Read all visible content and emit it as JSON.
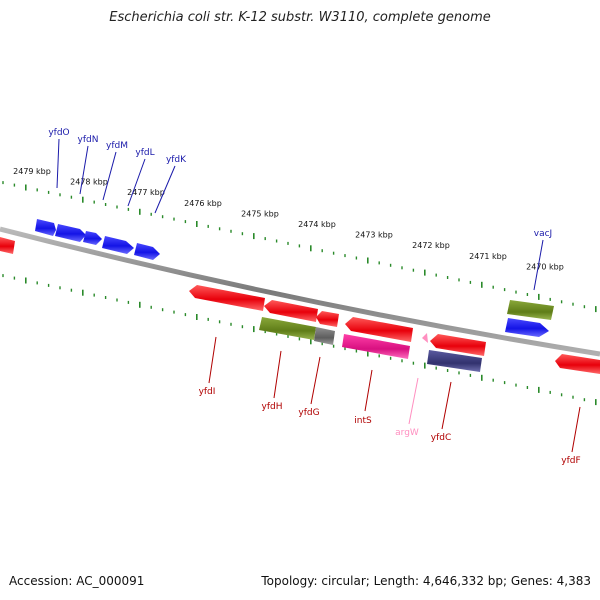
{
  "title": "Escherichia coli str. K-12 substr. W3110, complete genome",
  "accession": "Accession: AC_000091",
  "summary": "Topology: circular; Length: 4,646,332 bp; Genes: 4,383",
  "colors": {
    "backbone": "#888888",
    "tick": "#2a8a2a",
    "gene_red": "#e8000b",
    "gene_blue": "#1a1aee",
    "gene_olive": "#6b8a1e",
    "gene_magenta": "#e0168c",
    "gene_navy": "#3a3a78",
    "gene_grey": "#6e6e6e",
    "trna_pink": "#ff8fc0",
    "label_red": "#b00000",
    "label_blue": "#1a1aaa"
  },
  "scale_ticks": [
    "2479 kbp",
    "2478 kbp",
    "2477 kbp",
    "2476 kbp",
    "2475 kbp",
    "2474 kbp",
    "2473 kbp",
    "2472 kbp",
    "2471 kbp",
    "2470 kbp"
  ],
  "top_labels": [
    {
      "name": "yfdO",
      "color": "blue"
    },
    {
      "name": "yfdN",
      "color": "blue"
    },
    {
      "name": "yfdM",
      "color": "blue"
    },
    {
      "name": "yfdL",
      "color": "blue"
    },
    {
      "name": "yfdK",
      "color": "blue"
    },
    {
      "name": "vacJ",
      "color": "blue"
    }
  ],
  "bottom_labels": [
    {
      "name": "yfdI",
      "color": "red"
    },
    {
      "name": "yfdH",
      "color": "red"
    },
    {
      "name": "yfdG",
      "color": "red"
    },
    {
      "name": "intS",
      "color": "red"
    },
    {
      "name": "argW",
      "color": "pink"
    },
    {
      "name": "yfdC",
      "color": "red"
    },
    {
      "name": "yfdF",
      "color": "red"
    }
  ]
}
